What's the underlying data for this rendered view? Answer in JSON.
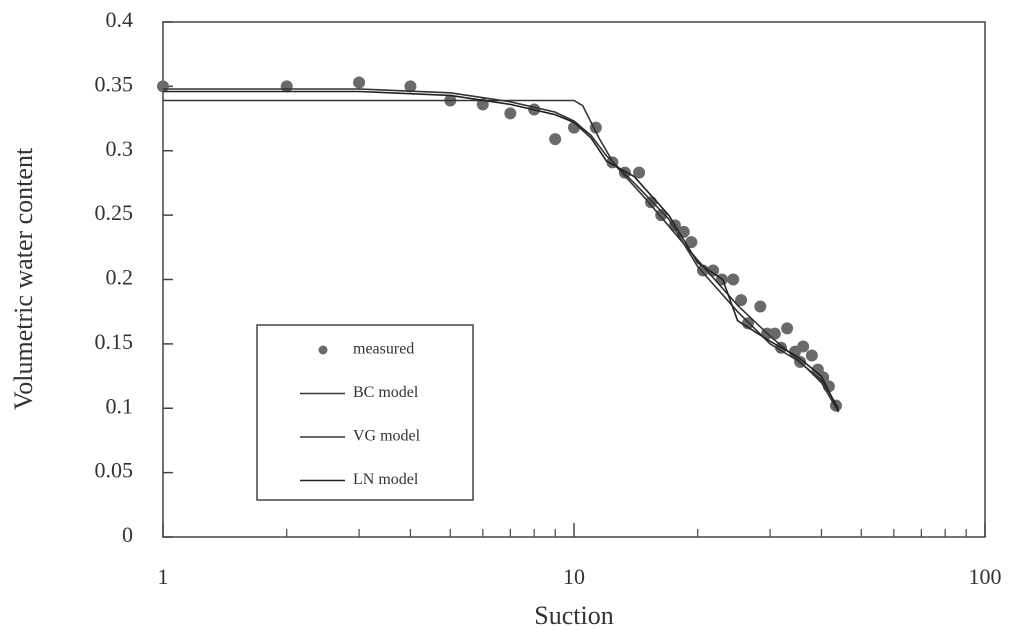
{
  "chart_data": {
    "type": "scatter",
    "x_label": "Suction",
    "y_label": "Volumetric water content",
    "x_log": true,
    "xlim": [
      1,
      100
    ],
    "xticks": [
      1,
      10,
      100
    ],
    "xminorticks": [
      2,
      3,
      4,
      5,
      6,
      7,
      8,
      9,
      20,
      30,
      40,
      50,
      60,
      70,
      80,
      90
    ],
    "ylim": [
      0,
      0.4
    ],
    "yticks": [
      0,
      0.05,
      0.1,
      0.15,
      0.2,
      0.25,
      0.3,
      0.35,
      0.4
    ],
    "series": [
      {
        "name": "measured",
        "mode": "markers",
        "color": "#6a6a6a",
        "x": [
          1,
          2,
          3,
          4,
          5,
          6,
          7,
          8,
          9,
          10,
          11.3,
          12.4,
          13.3,
          14.4,
          15.4,
          16.3,
          17.6,
          18.5,
          19.3,
          20.6,
          21.8,
          22.9,
          24.4,
          25.5,
          26.5,
          28.4,
          29.5,
          30.8,
          31.9,
          33,
          34.5,
          35.5,
          36.1,
          37.9,
          39.2,
          40.4,
          41.7,
          43.4
        ],
        "values": [
          0.35,
          0.35,
          0.353,
          0.35,
          0.339,
          0.336,
          0.329,
          0.332,
          0.309,
          0.318,
          0.318,
          0.291,
          0.283,
          0.283,
          0.26,
          0.25,
          0.242,
          0.237,
          0.229,
          0.207,
          0.207,
          0.2,
          0.2,
          0.184,
          0.166,
          0.179,
          0.158,
          0.158,
          0.147,
          0.162,
          0.144,
          0.136,
          0.148,
          0.141,
          0.13,
          0.124,
          0.117,
          0.102
        ]
      },
      {
        "name": "BC model",
        "mode": "line",
        "color": "#333333",
        "x": [
          1,
          9.5,
          10,
          10.5,
          11.5,
          12.5,
          15,
          20,
          25,
          30,
          35,
          40,
          44
        ],
        "values": [
          0.339,
          0.339,
          0.339,
          0.335,
          0.31,
          0.29,
          0.262,
          0.215,
          0.18,
          0.156,
          0.138,
          0.12,
          0.097
        ]
      },
      {
        "name": "VG model",
        "mode": "line",
        "color": "#333333",
        "x": [
          1,
          3,
          5,
          7,
          9,
          10,
          11,
          12,
          14,
          17,
          20,
          25,
          30,
          35,
          40,
          44
        ],
        "values": [
          0.348,
          0.348,
          0.345,
          0.338,
          0.33,
          0.323,
          0.312,
          0.296,
          0.275,
          0.247,
          0.21,
          0.175,
          0.15,
          0.137,
          0.122,
          0.1
        ]
      },
      {
        "name": "LN model",
        "mode": "line",
        "color": "#222222",
        "x": [
          1,
          3,
          5,
          7,
          9,
          10,
          11,
          12,
          14,
          17,
          20,
          23,
          25,
          30,
          35,
          40,
          44
        ],
        "values": [
          0.346,
          0.346,
          0.343,
          0.336,
          0.328,
          0.322,
          0.31,
          0.292,
          0.28,
          0.25,
          0.213,
          0.2,
          0.168,
          0.152,
          0.14,
          0.125,
          0.098
        ]
      }
    ]
  }
}
